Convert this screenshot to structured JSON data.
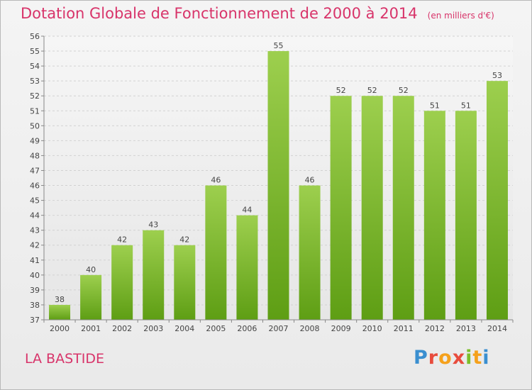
{
  "chart_data": {
    "type": "bar",
    "title": "Dotation Globale de Fonctionnement de 2000 à 2014",
    "subtitle": "(en milliers d'€)",
    "categories": [
      "2000",
      "2001",
      "2002",
      "2003",
      "2004",
      "2005",
      "2006",
      "2007",
      "2008",
      "2009",
      "2010",
      "2011",
      "2012",
      "2013",
      "2014"
    ],
    "values": [
      38,
      40,
      42,
      43,
      42,
      46,
      44,
      55,
      46,
      52,
      52,
      52,
      51,
      51,
      53
    ],
    "ylim": [
      37,
      56
    ],
    "yticks": [
      37,
      38,
      39,
      40,
      41,
      42,
      43,
      44,
      45,
      46,
      47,
      48,
      49,
      50,
      51,
      52,
      53,
      54,
      55,
      56
    ],
    "grid": true,
    "bar_color_top": "#9dcf4e",
    "bar_color_bottom": "#5e9e14"
  },
  "commune": "LA BASTIDE",
  "logo": {
    "text": "Proxiti"
  },
  "colors": {
    "accent": "#d8346a"
  }
}
